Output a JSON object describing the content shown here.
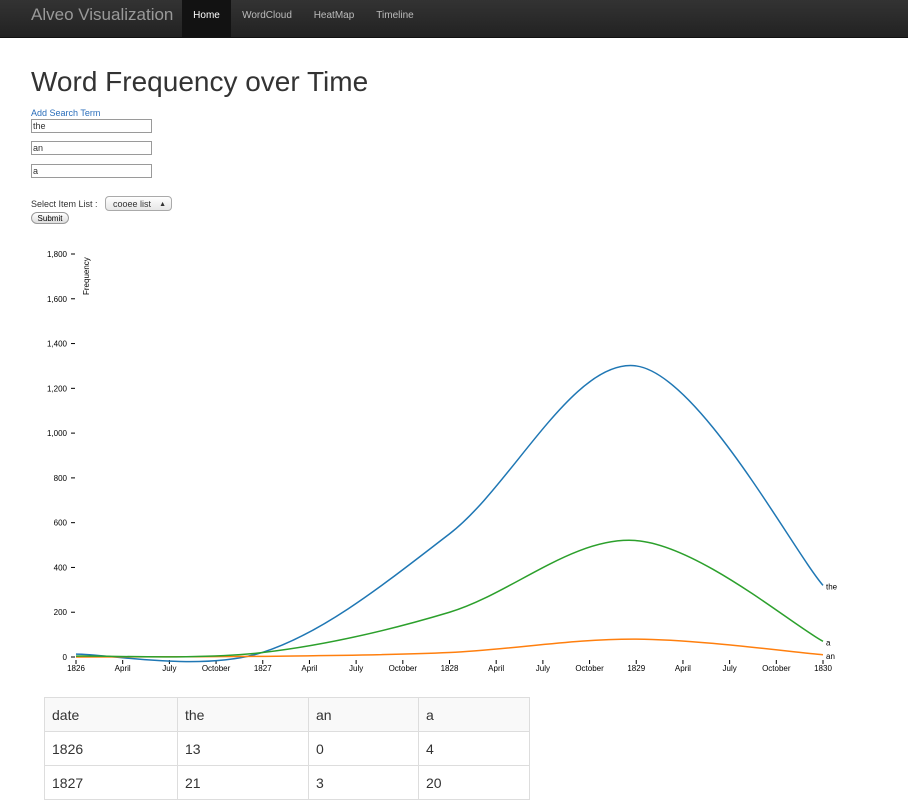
{
  "navbar": {
    "brand": "Alveo Visualization",
    "items": [
      {
        "label": "Home",
        "active": true
      },
      {
        "label": "WordCloud",
        "active": false
      },
      {
        "label": "HeatMap",
        "active": false
      },
      {
        "label": "Timeline",
        "active": false
      }
    ]
  },
  "page": {
    "title": "Word Frequency over Time",
    "add_search_term": "Add Search Term",
    "search_terms": [
      "the",
      "an",
      "a"
    ],
    "select_label": "Select Item List :",
    "selected_list": "cooee list",
    "submit_label": "Submit"
  },
  "chart_data": {
    "type": "line",
    "title": "",
    "xlabel": "",
    "ylabel": "Frequency",
    "ylim": [
      0,
      1800
    ],
    "y_ticks": [
      "0",
      "200",
      "400",
      "600",
      "800",
      "1,000",
      "1,200",
      "1,400",
      "1,600",
      "1,800"
    ],
    "x_ticks": [
      "1826",
      "April",
      "July",
      "October",
      "1827",
      "April",
      "July",
      "October",
      "1828",
      "April",
      "July",
      "October",
      "1829",
      "April",
      "July",
      "October",
      "1830"
    ],
    "x": [
      "1826",
      "1827",
      "1828",
      "1829",
      "1830"
    ],
    "series": [
      {
        "name": "the",
        "color": "#1f77b4",
        "values": [
          13,
          21,
          550,
          1300,
          320
        ]
      },
      {
        "name": "an",
        "color": "#ff7f0e",
        "values": [
          0,
          3,
          20,
          80,
          10
        ]
      },
      {
        "name": "a",
        "color": "#2ca02c",
        "values": [
          4,
          20,
          200,
          520,
          70
        ]
      }
    ]
  },
  "table": {
    "headers": [
      "date",
      "the",
      "an",
      "a"
    ],
    "rows": [
      [
        "1826",
        "13",
        "0",
        "4"
      ],
      [
        "1827",
        "21",
        "3",
        "20"
      ]
    ]
  }
}
